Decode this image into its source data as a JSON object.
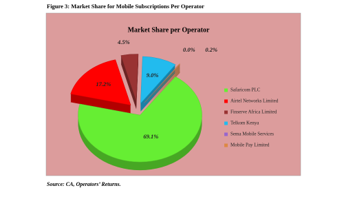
{
  "caption": "Figure 3: Market Share for Mobile Subscriptions Per Operator",
  "source": "Source: CA, Operators’ Returns.",
  "chart_data": {
    "type": "pie",
    "title": "Market Share per Operator",
    "categories": [
      "Safaricom PLC",
      "Airtel Networks Limited",
      "Finserve Africa Limited",
      "Telkom Kenya",
      "Sema Mobile Services",
      "Mobile Pay Limited"
    ],
    "values": [
      69.1,
      17.2,
      4.5,
      9.0,
      0.0,
      0.2
    ],
    "value_labels": [
      "69.1%",
      "17.2%",
      "4.5%",
      "9.0%",
      "0.0%",
      "0.2%"
    ],
    "colors": [
      "#66ee33",
      "#ff0000",
      "#993333",
      "#22bbee",
      "#9966cc",
      "#dd8844"
    ],
    "legend": "right"
  }
}
